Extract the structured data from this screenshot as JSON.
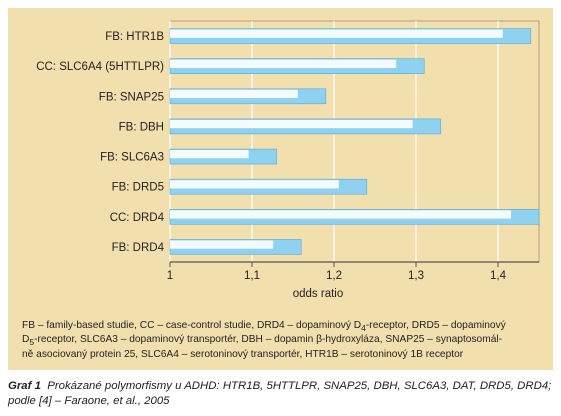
{
  "chart_data": {
    "type": "bar",
    "orientation": "horizontal",
    "categories": [
      "FB: HTR1B",
      "CC: SLC6A4 (5HTTLPR)",
      "FB: SNAP25",
      "FB: DBH",
      "FB: SLC6A3",
      "FB: DRD5",
      "CC: DRD4",
      "FB: DRD4"
    ],
    "values": [
      1.44,
      1.31,
      1.19,
      1.33,
      1.13,
      1.24,
      1.45,
      1.16
    ],
    "xlabel": "odds ratio",
    "ylabel": "",
    "xlim": [
      1.0,
      1.45
    ],
    "xticks": [
      "1",
      "1,1",
      "1,2",
      "1,3",
      "1,4"
    ],
    "tick_values": [
      1.0,
      1.1,
      1.2,
      1.3,
      1.4
    ],
    "grid": true,
    "colors": {
      "background": "#f2dfae",
      "bar": "#8fd1f0",
      "bar_highlight": "#ffffff",
      "bar_border": "#5aa9cf",
      "axis": "#333333"
    }
  },
  "footnote": {
    "line1_a": "FB – family-based studie, CC – case-control studie, DRD4 – dopaminový D",
    "line1_sub": "4",
    "line1_b": "-receptor, DRD5 – dopaminový",
    "line2_sub": "5",
    "line2_b": "-receptor, SLC6A3 – dopaminový transportér, DBH – dopamin β-hydroxyláza, SNAP25 – synaptosomál-",
    "line3": "ně asociovaný protein 25, SLC6A4 – serotoninový transportér, HTR1B – serotoninový 1B receptor"
  },
  "caption": {
    "label": "Graf 1",
    "text": "Prokázané polymorfismy u ADHD: HTR1B, 5HTTLPR, SNAP25, DBH, SLC6A3, DAT, DRD5, DRD4; podle [4] – Faraone, et al., 2005"
  }
}
